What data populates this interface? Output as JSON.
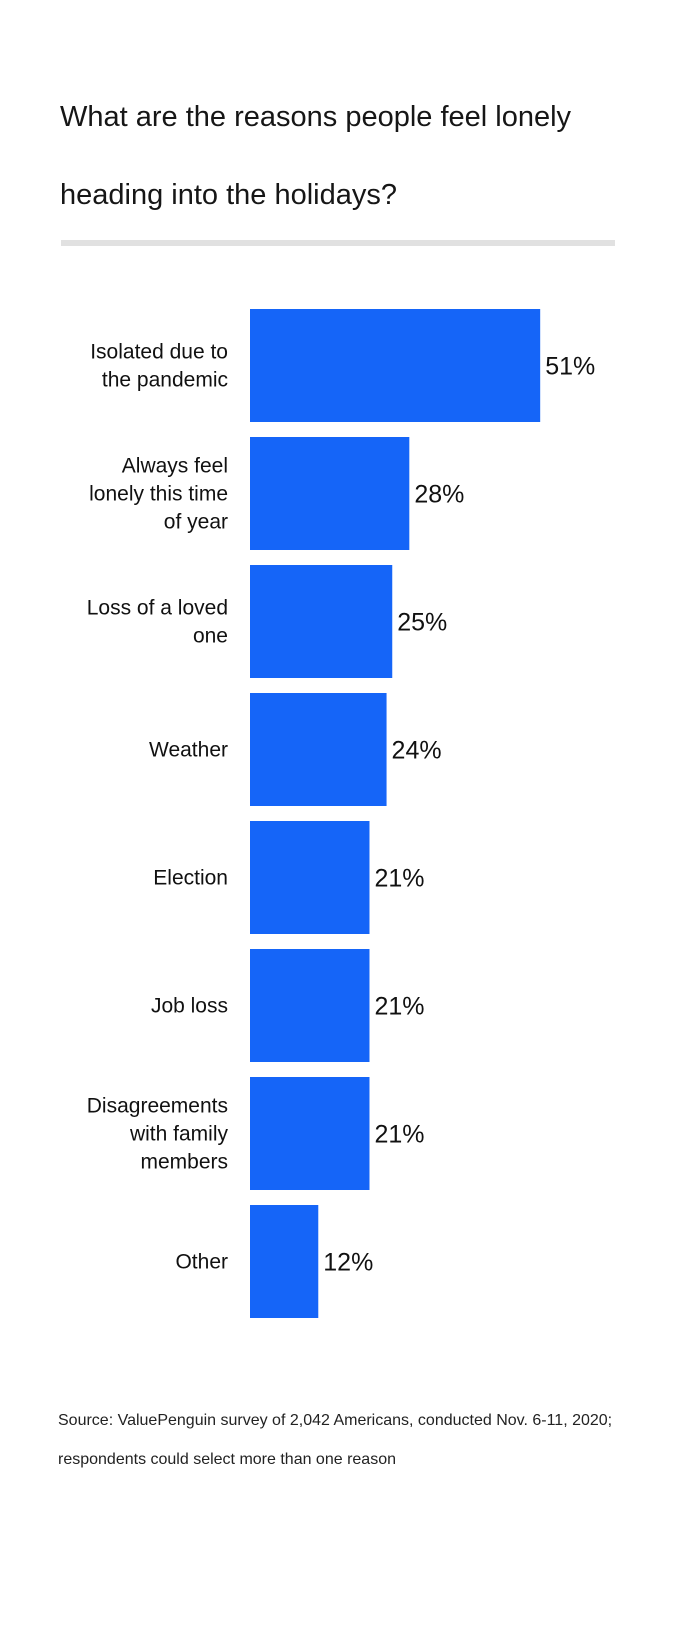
{
  "chart_data": {
    "type": "bar",
    "orientation": "horizontal",
    "title": "What are the reasons people feel lonely heading into the holidays?",
    "categories": [
      [
        "Isolated due to",
        "the pandemic"
      ],
      [
        "Always feel",
        "lonely this time",
        "of year"
      ],
      [
        "Loss of a loved",
        "one"
      ],
      [
        "Weather"
      ],
      [
        "Election"
      ],
      [
        "Job loss"
      ],
      [
        "Disagreements",
        "with family",
        "members"
      ],
      [
        "Other"
      ]
    ],
    "values": [
      51,
      28,
      25,
      24,
      21,
      21,
      21,
      12
    ],
    "value_labels": [
      "51%",
      "28%",
      "25%",
      "24%",
      "21%",
      "21%",
      "21%",
      "12%"
    ],
    "xlabel": "",
    "ylabel": "",
    "unit": "%",
    "bar_color": "#1565f8",
    "grid": false,
    "legend": "none"
  },
  "source": "Source: ValuePenguin survey of 2,042 Americans, conducted Nov. 6-11, 2020; respondents could select more than one reason"
}
